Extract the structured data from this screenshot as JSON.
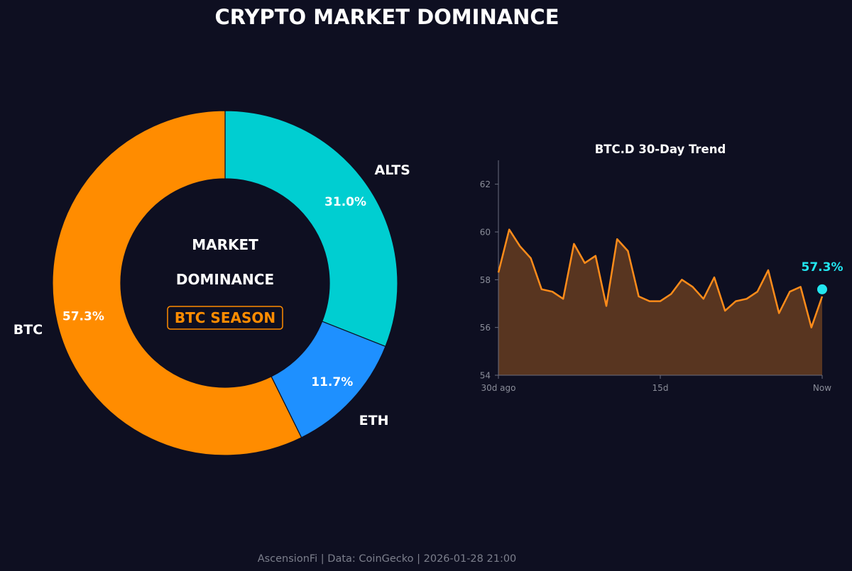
{
  "title": "CRYPTO MARKET DOMINANCE",
  "footer": "AscensionFi | Data: CoinGecko | 2026-01-28 21:00",
  "colors": {
    "background": "#0e0f21",
    "btc": "#ff8c00",
    "eth": "#1e90ff",
    "alts": "#00ced1",
    "line": "#ff8c1a",
    "fill": "#583520",
    "marker": "#22e6f0",
    "axis": "#6b6e7e",
    "tick_text": "#8a8d99",
    "text": "#ffffff"
  },
  "donut": {
    "center_line1": "MARKET",
    "center_line2": "DOMINANCE",
    "badge": "BTC SEASON"
  },
  "chart_data": [
    {
      "type": "pie",
      "variant": "donut",
      "title": "",
      "slices": [
        {
          "label": "ALTS",
          "value": 31.0,
          "pct_label": "31.0%",
          "color": "#00ced1"
        },
        {
          "label": "ETH",
          "value": 11.7,
          "pct_label": "11.7%",
          "color": "#1e90ff"
        },
        {
          "label": "BTC",
          "value": 57.3,
          "pct_label": "57.3%",
          "color": "#ff8c00"
        }
      ],
      "start": "12 o'clock, clockwise"
    },
    {
      "type": "area",
      "title": "BTC.D 30-Day Trend",
      "x": [
        0,
        1,
        2,
        3,
        4,
        5,
        6,
        7,
        8,
        9,
        10,
        11,
        12,
        13,
        14,
        15,
        16,
        17,
        18,
        19,
        20,
        21,
        22,
        23,
        24,
        25,
        26,
        27,
        28,
        29,
        30
      ],
      "values": [
        58.3,
        60.1,
        59.4,
        58.9,
        57.6,
        57.5,
        57.2,
        59.5,
        58.7,
        59.0,
        56.9,
        59.7,
        59.2,
        57.3,
        57.1,
        57.1,
        57.4,
        58.0,
        57.7,
        57.2,
        58.1,
        56.7,
        57.1,
        57.2,
        57.5,
        58.4,
        56.6,
        57.5,
        57.7,
        56.0,
        57.3
      ],
      "xlim": [
        0,
        30
      ],
      "ylim": [
        54,
        63
      ],
      "yticks": [
        54,
        56,
        58,
        60,
        62
      ],
      "xticks": [
        {
          "x": 0,
          "label": "30d ago"
        },
        {
          "x": 15,
          "label": "15d"
        },
        {
          "x": 30,
          "label": "Now"
        }
      ],
      "last_label": "57.3%",
      "xlabel": "",
      "ylabel": "",
      "grid": false
    }
  ]
}
